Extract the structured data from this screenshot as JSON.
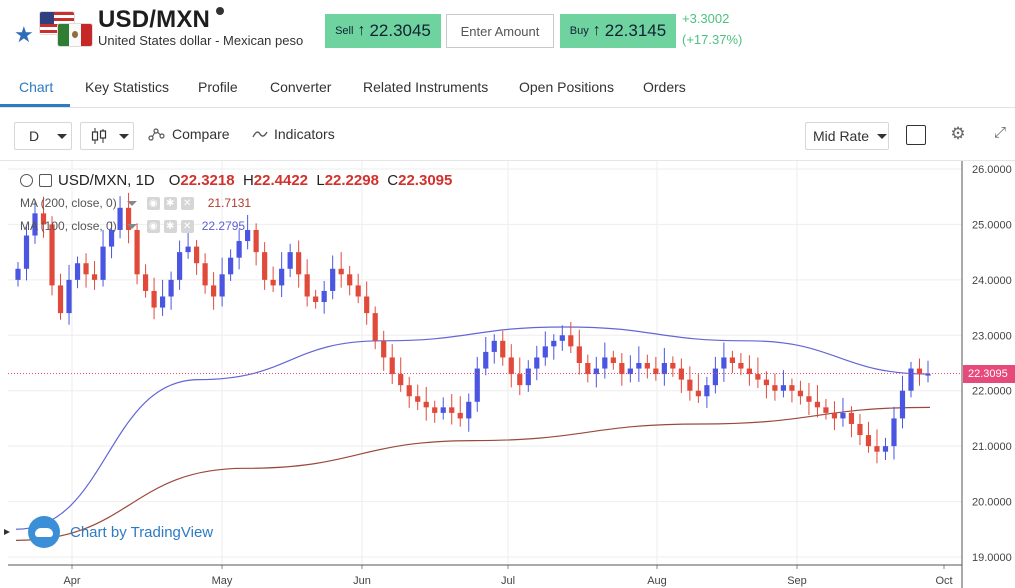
{
  "header": {
    "symbol": "USD/MXN",
    "name": "United States dollar - Mexican peso",
    "sell_label": "Sell",
    "sell_price": "22.3045",
    "amount_placeholder": "Enter Amount",
    "buy_label": "Buy",
    "buy_price": "22.3145",
    "change_abs": "+3.3002",
    "change_pct": "(+17.37%)",
    "up_arrow": "↑",
    "accent_color": "#6fd39f"
  },
  "tabs": [
    {
      "label": "Chart",
      "active": true
    },
    {
      "label": "Key Statistics"
    },
    {
      "label": "Profile"
    },
    {
      "label": "Converter"
    },
    {
      "label": "Related Instruments"
    },
    {
      "label": "Open Positions"
    },
    {
      "label": "Orders"
    }
  ],
  "toolbar": {
    "interval": "D",
    "compare_label": "Compare",
    "indicators_label": "Indicators",
    "price_type": "Mid Rate"
  },
  "legend": {
    "title": "USD/MXN, 1D",
    "o_label": "O",
    "o_value": "22.3218",
    "h_label": "H",
    "h_value": "22.4422",
    "l_label": "L",
    "l_value": "22.2298",
    "c_label": "C",
    "c_value": "22.3095",
    "ma200_label": "MA (200, close, 0)",
    "ma200_value": "21.7131",
    "ma100_label": "MA (100, close, 0)",
    "ma100_value": "22.2795"
  },
  "watermark": "Chart by TradingView",
  "last_price_tag": "22.3095",
  "chart_data": {
    "type": "candlestick",
    "x_tick_labels": [
      "Apr",
      "May",
      "Jun",
      "Jul",
      "Aug",
      "Sep",
      "Oct"
    ],
    "y_tick_labels": [
      "26.0000",
      "25.0000",
      "24.0000",
      "23.0000",
      "22.0000",
      "21.0000",
      "20.0000",
      "19.0000"
    ],
    "ylim": [
      19.0,
      26.0
    ],
    "last_price": 22.3095,
    "series": [
      {
        "name": "USD/MXN, 1D",
        "close_path": [
          24.2,
          24.8,
          25.2,
          25.0,
          23.9,
          23.4,
          24.0,
          24.3,
          24.1,
          24.0,
          24.6,
          24.9,
          25.3,
          24.9,
          24.1,
          23.8,
          23.5,
          23.7,
          24.0,
          24.5,
          24.6,
          24.3,
          23.9,
          23.7,
          24.1,
          24.4,
          24.7,
          24.9,
          24.5,
          24.0,
          23.9,
          24.2,
          24.5,
          24.1,
          23.7,
          23.6,
          23.8,
          24.2,
          24.1,
          23.9,
          23.7,
          23.4,
          22.9,
          22.6,
          22.3,
          22.1,
          21.9,
          21.8,
          21.7,
          21.6,
          21.7,
          21.6,
          21.5,
          21.8,
          22.4,
          22.7,
          22.9,
          22.6,
          22.3,
          22.1,
          22.4,
          22.6,
          22.8,
          22.9,
          23.0,
          22.8,
          22.5,
          22.3,
          22.4,
          22.6,
          22.5,
          22.3,
          22.4,
          22.5,
          22.4,
          22.3,
          22.5,
          22.4,
          22.2,
          22.0,
          21.9,
          22.1,
          22.4,
          22.6,
          22.5,
          22.4,
          22.3,
          22.2,
          22.1,
          22.0,
          22.1,
          22.0,
          21.9,
          21.8,
          21.7,
          21.6,
          21.5,
          21.6,
          21.4,
          21.2,
          21.0,
          20.9,
          21.0,
          21.5,
          22.0,
          22.4,
          22.3,
          22.3
        ]
      },
      {
        "name": "MA (100, close, 0)",
        "values": [
          19.5,
          22.2,
          22.9,
          23.15,
          22.9,
          22.3
        ]
      },
      {
        "name": "MA (200, close, 0)",
        "values": [
          19.3,
          20.6,
          21.1,
          21.4,
          21.7
        ]
      }
    ]
  }
}
